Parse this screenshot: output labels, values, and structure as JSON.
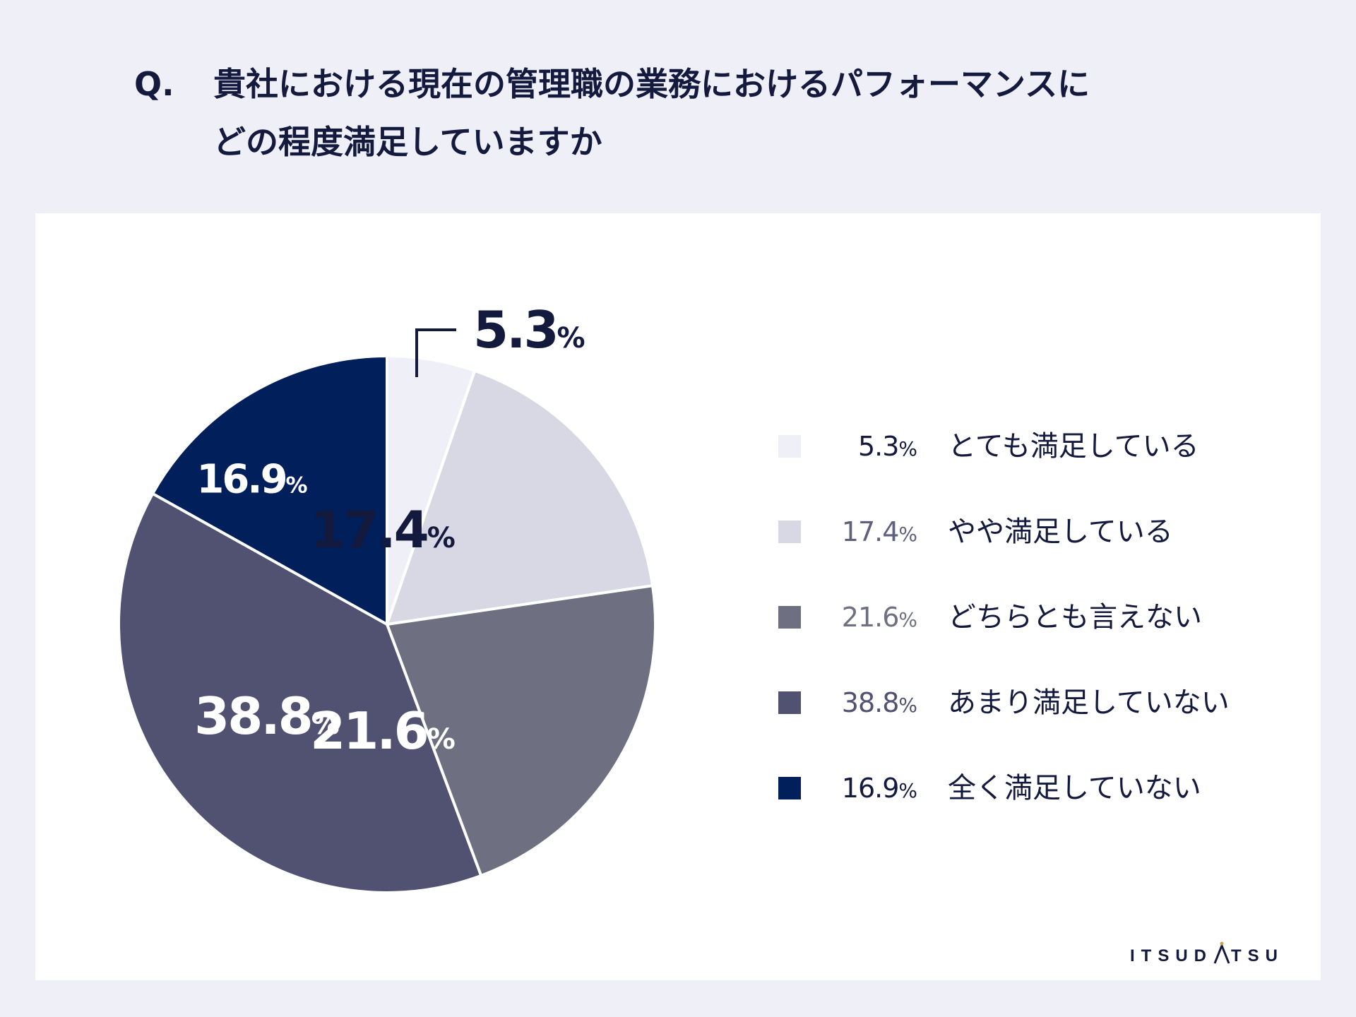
{
  "question": {
    "mark": "Q.",
    "lines": [
      "貴社における現在の管理職の業務におけるパフォーマンスに",
      "どの程度満足していますか"
    ]
  },
  "chart_data": {
    "type": "pie",
    "title": "貴社における現在の管理職の業務におけるパフォーマンスにどの程度満足していますか",
    "unit": "%",
    "slices": [
      {
        "label": "とても満足している",
        "value": 5.3,
        "value_text": "5.3",
        "color": "#efeff8",
        "label_color": "#131a3d",
        "legend_text_color": "#131a3d"
      },
      {
        "label": "やや満足している",
        "value": 17.4,
        "value_text": "17.4",
        "color": "#d8d8e4",
        "label_color": "#131a3d",
        "legend_text_color": "#5f6080"
      },
      {
        "label": "どちらとも言えない",
        "value": 21.6,
        "value_text": "21.6",
        "color": "#6f6f82",
        "label_color": "#ffffff",
        "legend_text_color": "#6f6f82"
      },
      {
        "label": "あまり満足していない",
        "value": 38.8,
        "value_text": "38.8",
        "color": "#515272",
        "label_color": "#ffffff",
        "legend_text_color": "#515272"
      },
      {
        "label": "全く満足していない",
        "value": 16.9,
        "value_text": "16.9",
        "color": "#001f5b",
        "label_color": "#ffffff",
        "legend_text_color": "#131a3d"
      }
    ]
  },
  "logo": {
    "left": "ITSUD",
    "right": "TSU",
    "accent_color": "#c9a44c"
  }
}
